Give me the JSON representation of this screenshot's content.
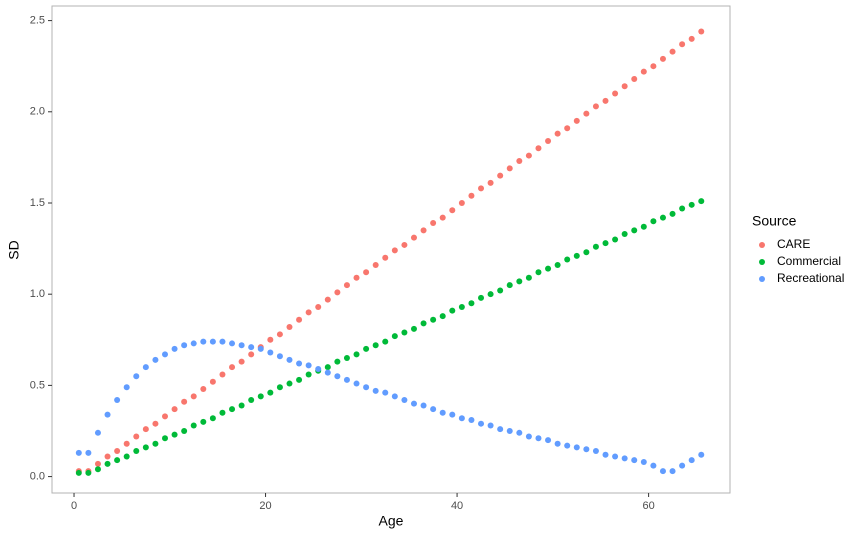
{
  "chart_data": {
    "type": "scatter",
    "x_label": "Age",
    "y_label": "SD",
    "legend_title": "Source",
    "x": [
      0.5,
      1.5,
      2.5,
      3.5,
      4.5,
      5.5,
      6.5,
      7.5,
      8.5,
      9.5,
      10.5,
      11.5,
      12.5,
      13.5,
      14.5,
      15.5,
      16.5,
      17.5,
      18.5,
      19.5,
      20.5,
      21.5,
      22.5,
      23.5,
      24.5,
      25.5,
      26.5,
      27.5,
      28.5,
      29.5,
      30.5,
      31.5,
      32.5,
      33.5,
      34.5,
      35.5,
      36.5,
      37.5,
      38.5,
      39.5,
      40.5,
      41.5,
      42.5,
      43.5,
      44.5,
      45.5,
      46.5,
      47.5,
      48.5,
      49.5,
      50.5,
      51.5,
      52.5,
      53.5,
      54.5,
      55.5,
      56.5,
      57.5,
      58.5,
      59.5,
      60.5,
      61.5,
      62.5,
      63.5,
      64.5,
      65.5
    ],
    "series": [
      {
        "name": "CARE",
        "color": "#f8766d",
        "values": [
          0.03,
          0.03,
          0.07,
          0.11,
          0.14,
          0.18,
          0.22,
          0.26,
          0.29,
          0.33,
          0.37,
          0.41,
          0.44,
          0.48,
          0.52,
          0.56,
          0.6,
          0.63,
          0.67,
          0.71,
          0.75,
          0.78,
          0.82,
          0.86,
          0.9,
          0.93,
          0.97,
          1.01,
          1.05,
          1.09,
          1.12,
          1.16,
          1.2,
          1.24,
          1.27,
          1.31,
          1.35,
          1.39,
          1.42,
          1.46,
          1.5,
          1.54,
          1.58,
          1.61,
          1.65,
          1.69,
          1.73,
          1.76,
          1.8,
          1.84,
          1.88,
          1.91,
          1.95,
          1.99,
          2.03,
          2.06,
          2.1,
          2.14,
          2.18,
          2.22,
          2.25,
          2.29,
          2.33,
          2.37,
          2.4,
          2.44
        ]
      },
      {
        "name": "Commercial",
        "color": "#00ba38",
        "values": [
          0.02,
          0.02,
          0.04,
          0.07,
          0.09,
          0.11,
          0.14,
          0.16,
          0.18,
          0.21,
          0.23,
          0.25,
          0.28,
          0.3,
          0.32,
          0.35,
          0.37,
          0.39,
          0.42,
          0.44,
          0.46,
          0.49,
          0.51,
          0.53,
          0.56,
          0.58,
          0.6,
          0.63,
          0.65,
          0.67,
          0.7,
          0.72,
          0.74,
          0.77,
          0.79,
          0.81,
          0.84,
          0.86,
          0.88,
          0.91,
          0.93,
          0.95,
          0.98,
          1.0,
          1.02,
          1.05,
          1.07,
          1.09,
          1.12,
          1.14,
          1.16,
          1.19,
          1.21,
          1.23,
          1.26,
          1.28,
          1.3,
          1.33,
          1.35,
          1.37,
          1.4,
          1.42,
          1.44,
          1.47,
          1.49,
          1.51
        ]
      },
      {
        "name": "Recreational",
        "color": "#619cff",
        "values": [
          0.13,
          0.13,
          0.24,
          0.34,
          0.42,
          0.49,
          0.55,
          0.6,
          0.64,
          0.67,
          0.7,
          0.72,
          0.73,
          0.74,
          0.74,
          0.74,
          0.73,
          0.72,
          0.71,
          0.7,
          0.68,
          0.66,
          0.64,
          0.62,
          0.61,
          0.59,
          0.57,
          0.55,
          0.53,
          0.51,
          0.49,
          0.47,
          0.46,
          0.44,
          0.42,
          0.4,
          0.39,
          0.37,
          0.35,
          0.34,
          0.32,
          0.31,
          0.29,
          0.28,
          0.26,
          0.25,
          0.24,
          0.22,
          0.21,
          0.2,
          0.18,
          0.17,
          0.16,
          0.15,
          0.14,
          0.12,
          0.11,
          0.1,
          0.09,
          0.08,
          0.06,
          0.03,
          0.03,
          0.06,
          0.09,
          0.12
        ]
      }
    ],
    "xlim": [
      -2.3,
      68.5
    ],
    "xticks": [
      0,
      20,
      40,
      60
    ],
    "ylim": [
      -0.09,
      2.58
    ],
    "yticks": [
      {
        "value": 0,
        "label": "0.0"
      },
      {
        "value": 0.5,
        "label": "0.5"
      },
      {
        "value": 1,
        "label": "1.0"
      },
      {
        "value": 1.5,
        "label": "1.5"
      },
      {
        "value": 2,
        "label": "2.0"
      },
      {
        "value": 2.5,
        "label": "2.5"
      }
    ],
    "grid": false,
    "legend": "right"
  }
}
